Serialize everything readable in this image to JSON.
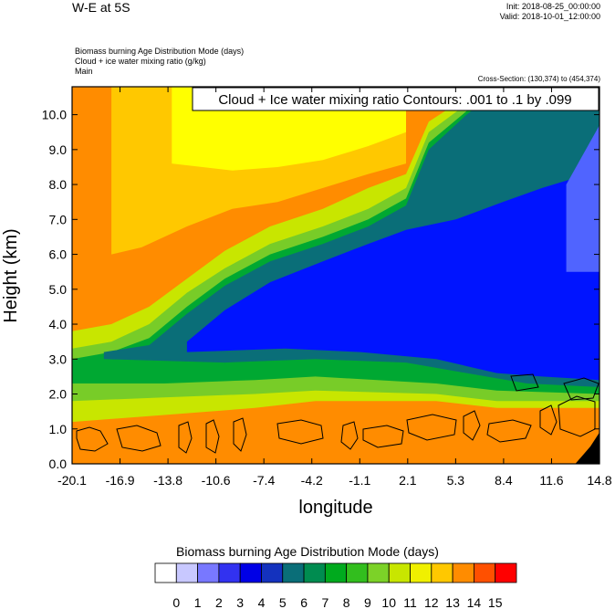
{
  "header": {
    "title": "W-E at 5S",
    "init": "Init: 2018-08-25_00:00:00",
    "valid": "Valid: 2018-10-01_12:00:00",
    "field1": "Biomass burning Age Distribution Mode   (days)",
    "field2": "Cloud + ice water mixing ratio   (g/kg)",
    "field3": "Main",
    "cross_section": "Cross-Section: (130,374) to (454,374)"
  },
  "chart_data": {
    "type": "heatmap",
    "contour_label": "Cloud + Ice water mixing ratio Contours: .001 to .1 by .099",
    "xlabel": "longitude",
    "ylabel": "Height (km)",
    "xlim": [
      -20.1,
      14.8
    ],
    "ylim": [
      0.0,
      10.8
    ],
    "x_ticks": [
      "-20.1",
      "-16.9",
      "-13.8",
      "-10.6",
      "-7.4",
      "-4.2",
      "-1.1",
      "2.1",
      "5.3",
      "8.4",
      "11.6",
      "14.8"
    ],
    "y_ticks": [
      "0.0",
      "1.0",
      "2.0",
      "3.0",
      "4.0",
      "5.0",
      "6.0",
      "7.0",
      "8.0",
      "9.0",
      "10.0"
    ],
    "y_tick_values": [
      0,
      1,
      2,
      3,
      4,
      5,
      6,
      7,
      8,
      9,
      10
    ],
    "bands": [
      {
        "name": "orange",
        "color": "#ff8c00",
        "boundary": [
          [
            -20.1,
            10.8
          ],
          [
            14.8,
            10.8
          ],
          [
            14.8,
            0
          ],
          [
            -20.1,
            0
          ]
        ]
      },
      {
        "name": "amber",
        "color": "#ffc800",
        "boundary": [
          [
            -17.5,
            10.8
          ],
          [
            2.0,
            10.8
          ],
          [
            2.0,
            8.6
          ],
          [
            -0.5,
            8.3
          ],
          [
            -3.5,
            7.9
          ],
          [
            -6.5,
            7.5
          ],
          [
            -9.5,
            7.3
          ],
          [
            -12.5,
            6.8
          ],
          [
            -15.5,
            6.2
          ],
          [
            -17.5,
            6.0
          ]
        ]
      },
      {
        "name": "yellow",
        "color": "#ffff00",
        "boundary": [
          [
            -13.5,
            10.8
          ],
          [
            2.0,
            10.8
          ],
          [
            2.0,
            9.5
          ],
          [
            -0.5,
            9.1
          ],
          [
            -3.5,
            8.7
          ],
          [
            -6.5,
            8.5
          ],
          [
            -9.5,
            8.4
          ],
          [
            -13.5,
            8.6
          ]
        ]
      },
      {
        "name": "yellow-green",
        "color": "#c8e600",
        "boundary": [
          [
            -20.1,
            3.8
          ],
          [
            -17.5,
            4.0
          ],
          [
            -15.0,
            4.5
          ],
          [
            -12.5,
            5.3
          ],
          [
            -10.0,
            6.1
          ],
          [
            -7.0,
            6.8
          ],
          [
            -3.5,
            7.3
          ],
          [
            -0.5,
            7.9
          ],
          [
            2.0,
            8.3
          ],
          [
            3.5,
            9.8
          ],
          [
            6.0,
            10.5
          ],
          [
            8.4,
            10.8
          ],
          [
            14.8,
            10.8
          ],
          [
            14.8,
            1.6
          ],
          [
            8.0,
            1.6
          ],
          [
            4.0,
            1.8
          ],
          [
            -4.0,
            1.8
          ],
          [
            -8.0,
            1.6
          ],
          [
            -14.0,
            1.4
          ],
          [
            -20.1,
            1.2
          ]
        ]
      },
      {
        "name": "light-green",
        "color": "#78cc28",
        "boundary": [
          [
            -20.1,
            3.3
          ],
          [
            -17.5,
            3.5
          ],
          [
            -15.0,
            4.0
          ],
          [
            -12.5,
            4.9
          ],
          [
            -10.0,
            5.6
          ],
          [
            -7.0,
            6.3
          ],
          [
            -3.5,
            6.8
          ],
          [
            -0.5,
            7.3
          ],
          [
            2.0,
            7.9
          ],
          [
            3.5,
            9.5
          ],
          [
            6.0,
            10.3
          ],
          [
            8.4,
            10.8
          ],
          [
            14.8,
            10.8
          ],
          [
            14.8,
            1.8
          ],
          [
            8.0,
            1.8
          ],
          [
            4.0,
            2.0
          ],
          [
            -4.0,
            2.1
          ],
          [
            -8.0,
            2.0
          ],
          [
            -14.0,
            1.9
          ],
          [
            -20.1,
            1.8
          ]
        ]
      },
      {
        "name": "green",
        "color": "#00a832",
        "boundary": [
          [
            -20.1,
            3.0
          ],
          [
            -17.5,
            3.2
          ],
          [
            -15.0,
            3.6
          ],
          [
            -12.5,
            4.5
          ],
          [
            -10.0,
            5.3
          ],
          [
            -7.0,
            6.0
          ],
          [
            -3.5,
            6.5
          ],
          [
            -0.5,
            7.0
          ],
          [
            2.0,
            7.6
          ],
          [
            3.5,
            9.2
          ],
          [
            6.0,
            10.1
          ],
          [
            8.4,
            10.8
          ],
          [
            14.8,
            10.8
          ],
          [
            14.8,
            2.0
          ],
          [
            8.0,
            2.1
          ],
          [
            4.0,
            2.3
          ],
          [
            -4.0,
            2.5
          ],
          [
            -8.0,
            2.4
          ],
          [
            -14.0,
            2.3
          ],
          [
            -20.1,
            2.3
          ]
        ]
      },
      {
        "name": "teal",
        "color": "#0a6e78",
        "boundary": [
          [
            -18.0,
            3.2
          ],
          [
            -15.0,
            3.4
          ],
          [
            -12.5,
            4.3
          ],
          [
            -10.0,
            5.1
          ],
          [
            -7.0,
            5.8
          ],
          [
            -3.5,
            6.3
          ],
          [
            -0.5,
            6.8
          ],
          [
            2.0,
            7.4
          ],
          [
            3.5,
            9.0
          ],
          [
            6.0,
            10.0
          ],
          [
            8.4,
            10.8
          ],
          [
            14.8,
            10.8
          ],
          [
            14.8,
            2.2
          ],
          [
            10.0,
            2.3
          ],
          [
            6.0,
            2.6
          ],
          [
            2.0,
            2.9
          ],
          [
            -4.0,
            3.0
          ],
          [
            -10.0,
            2.9
          ],
          [
            -18.0,
            3.0
          ]
        ]
      },
      {
        "name": "blue",
        "color": "#0014ff",
        "boundary": [
          [
            -12.5,
            3.5
          ],
          [
            -10.0,
            4.4
          ],
          [
            -7.0,
            5.2
          ],
          [
            -3.5,
            5.8
          ],
          [
            -0.5,
            6.3
          ],
          [
            2.0,
            6.7
          ],
          [
            5.3,
            7.0
          ],
          [
            8.4,
            7.5
          ],
          [
            11.0,
            7.9
          ],
          [
            14.8,
            8.4
          ],
          [
            14.8,
            2.4
          ],
          [
            11.0,
            2.5
          ],
          [
            8.0,
            2.6
          ],
          [
            4.0,
            3.0
          ],
          [
            -1.0,
            3.2
          ],
          [
            -6.0,
            3.3
          ],
          [
            -12.5,
            3.2
          ]
        ]
      },
      {
        "name": "light-blue",
        "color": "#5064ff",
        "boundary": [
          [
            12.6,
            8.0
          ],
          [
            14.8,
            9.7
          ],
          [
            14.8,
            5.5
          ],
          [
            12.6,
            5.5
          ]
        ]
      },
      {
        "name": "ground",
        "color": "#000000",
        "boundary": [
          [
            13.2,
            0
          ],
          [
            14.2,
            0.5
          ],
          [
            14.8,
            0.9
          ],
          [
            14.8,
            0
          ]
        ]
      }
    ],
    "legend": {
      "title": "Biomass burning Age Distribution Mode  (days)",
      "labels": [
        "0",
        "1",
        "2",
        "3",
        "4",
        "5",
        "6",
        "7",
        "8",
        "9",
        "10",
        "11",
        "12",
        "13",
        "14",
        "15"
      ],
      "colors": [
        "#ffffff",
        "#c8c8ff",
        "#7878ff",
        "#3232f0",
        "#0000e6",
        "#1432be",
        "#0a6e78",
        "#008c50",
        "#00aa1e",
        "#32be1e",
        "#7cd228",
        "#c8e600",
        "#f0f000",
        "#ffc800",
        "#ff8c00",
        "#ff5000",
        "#ff0000"
      ]
    }
  }
}
